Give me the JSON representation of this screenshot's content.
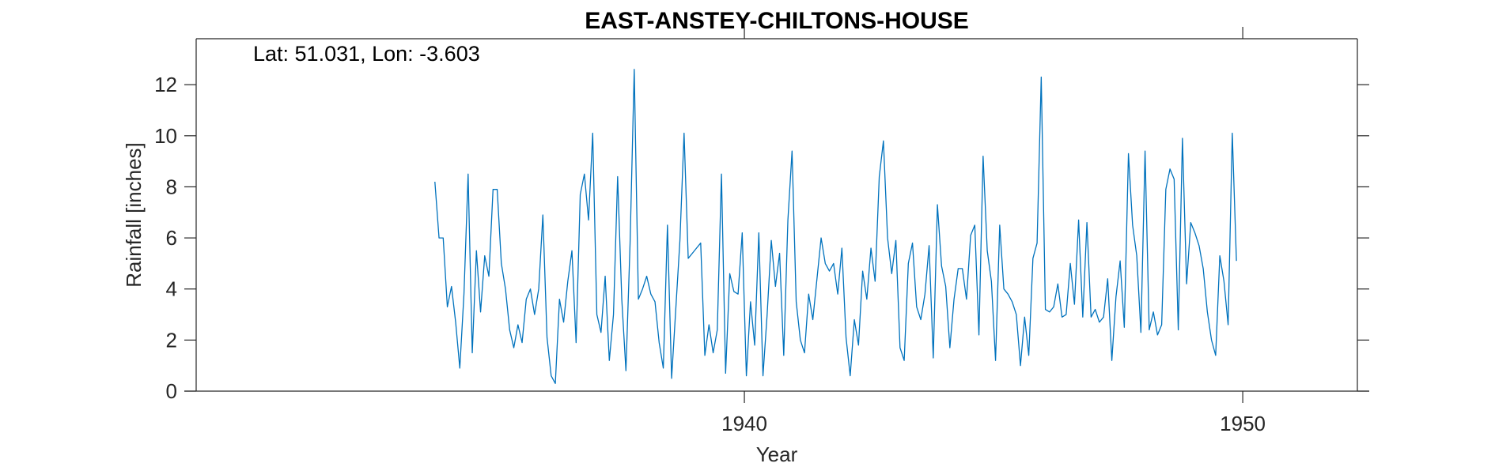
{
  "chart_data": {
    "type": "line",
    "title": "EAST-ANSTEY-CHILTONS-HOUSE",
    "annotation": "Lat: 51.031, Lon: -3.603",
    "xlabel": "Year",
    "ylabel": "Rainfall [inches]",
    "xlim": [
      1929.0,
      1952.3
    ],
    "ylim": [
      0,
      13.8
    ],
    "xticks": [
      1940,
      1950
    ],
    "yticks": [
      0,
      2,
      4,
      6,
      8,
      10,
      12
    ],
    "grid": false,
    "color": "#0072BD",
    "series": [
      {
        "start_year": 1933.79,
        "step_months": 1,
        "values": [
          8.2,
          6.0,
          6.0,
          3.3,
          4.1,
          2.7,
          0.9,
          3.8,
          8.5,
          1.5,
          5.5,
          3.1,
          5.3,
          4.5,
          7.9,
          7.9,
          5.0,
          4.0,
          2.4,
          1.7,
          2.6,
          1.9,
          3.6,
          4.0,
          3.0,
          4.0,
          6.9,
          2.1,
          0.6,
          0.3,
          3.6,
          2.7,
          4.3,
          5.5,
          1.9,
          7.7,
          8.5,
          6.7,
          10.1,
          3.0,
          2.3,
          4.5,
          1.2,
          3.0,
          8.4,
          3.6,
          0.8,
          5.8,
          12.6,
          3.6,
          4.0,
          4.5,
          3.8,
          3.5,
          1.9,
          0.9,
          6.5,
          0.5,
          3.2,
          5.9,
          10.1,
          5.2,
          5.4,
          5.6,
          5.8,
          1.4,
          2.6,
          1.5,
          2.4,
          8.5,
          0.7,
          4.6,
          3.9,
          3.8,
          6.2,
          0.6,
          3.5,
          1.8,
          6.2,
          0.6,
          3.0,
          5.9,
          4.1,
          5.4,
          1.4,
          6.7,
          9.4,
          3.5,
          2.0,
          1.5,
          3.8,
          2.8,
          4.4,
          6.0,
          5.0,
          4.7,
          5.0,
          3.8,
          5.6,
          2.1,
          0.6,
          2.8,
          1.8,
          4.7,
          3.6,
          5.6,
          4.3,
          8.4,
          9.8,
          6.0,
          4.6,
          5.9,
          1.7,
          1.2,
          5.0,
          5.8,
          3.3,
          2.8,
          3.8,
          5.7,
          1.3,
          7.3,
          4.9,
          4.1,
          1.7,
          3.6,
          4.8,
          4.8,
          3.6,
          6.1,
          6.5,
          2.2,
          9.2,
          5.5,
          4.3,
          1.2,
          6.5,
          4.0,
          3.8,
          3.5,
          3.0,
          1.0,
          2.9,
          1.4,
          5.2,
          5.8,
          12.3,
          3.2,
          3.1,
          3.3,
          4.2,
          2.9,
          3.0,
          5.0,
          3.4,
          6.7,
          2.9,
          6.6,
          2.9,
          3.2,
          2.7,
          2.9,
          4.4,
          1.2,
          3.7,
          5.1,
          2.5,
          9.3,
          6.5,
          5.3,
          2.3,
          9.4,
          2.4,
          3.1,
          2.2,
          2.6,
          7.9,
          8.7,
          8.3,
          2.4,
          9.9,
          4.2,
          6.6,
          6.2,
          5.7,
          4.8,
          3.1,
          2.0,
          1.4,
          5.3,
          4.3,
          2.6,
          10.1,
          5.1
        ]
      }
    ]
  }
}
